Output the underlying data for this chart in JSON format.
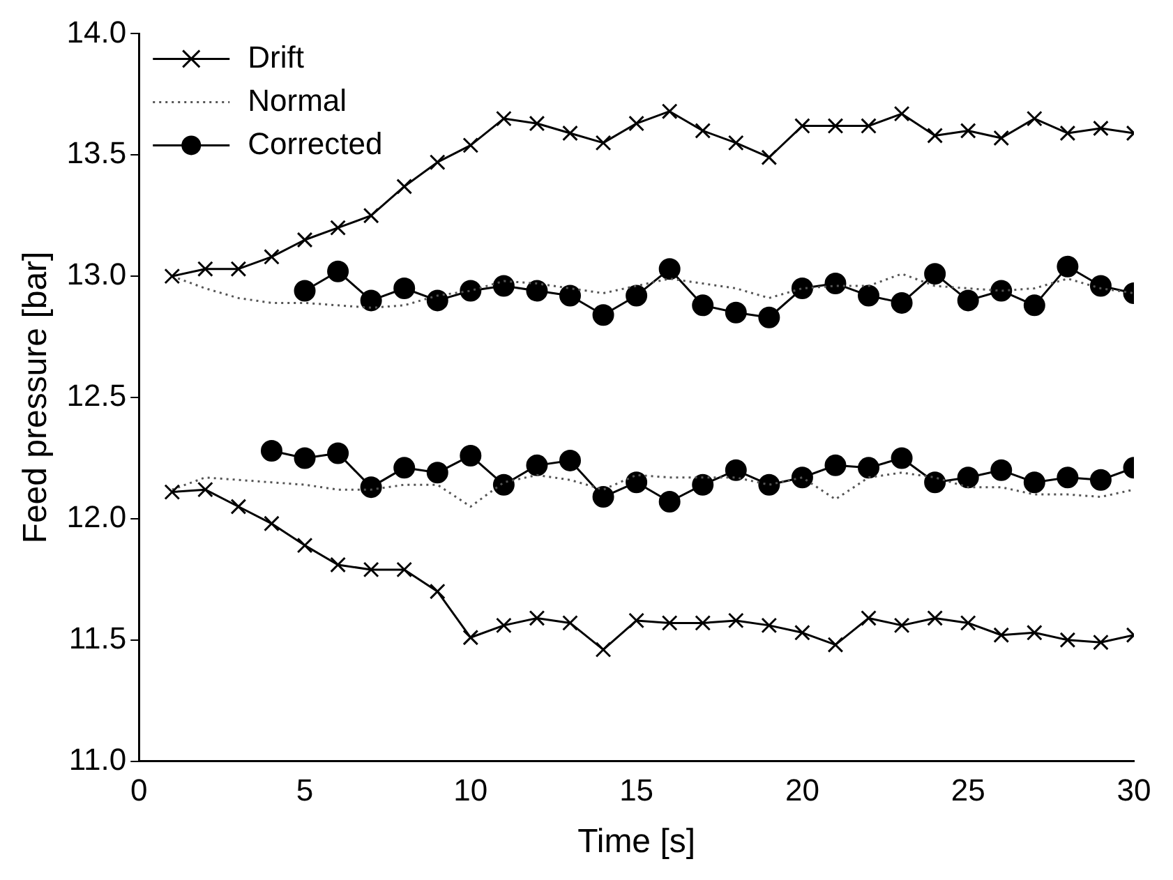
{
  "chart_data": {
    "type": "line",
    "xlabel": "Time [s]",
    "ylabel": "Feed pressure [bar]",
    "xlim": [
      0,
      30
    ],
    "xticks": [
      0,
      5,
      10,
      15,
      20,
      25,
      30
    ],
    "ylim": [
      11,
      14
    ],
    "yticks": [
      {
        "value": 11,
        "label": "11.0"
      },
      {
        "value": 11.5,
        "label": "11.5"
      },
      {
        "value": 12,
        "label": "12.0"
      },
      {
        "value": 12.5,
        "label": "12.5"
      },
      {
        "value": 13,
        "label": "13.0"
      },
      {
        "value": 13.5,
        "label": "13.5"
      },
      {
        "value": 14,
        "label": "14.0"
      }
    ],
    "grid": false,
    "legend": "top left",
    "x": [
      1,
      2,
      3,
      4,
      5,
      6,
      7,
      8,
      9,
      10,
      11,
      12,
      13,
      14,
      15,
      16,
      17,
      18,
      19,
      20,
      21,
      22,
      23,
      24,
      25,
      26,
      27,
      28,
      29,
      30
    ],
    "series": [
      {
        "name": "Drift",
        "color": "#000000",
        "marker": "cross",
        "line_style": "solid",
        "values": [
          13.0,
          13.03,
          13.03,
          13.08,
          13.15,
          13.2,
          13.25,
          13.37,
          13.47,
          13.54,
          13.65,
          13.63,
          13.59,
          13.55,
          13.63,
          13.68,
          13.6,
          13.55,
          13.49,
          13.62,
          13.62,
          13.62,
          13.67,
          13.58,
          13.6,
          13.57,
          13.65,
          13.59,
          13.61,
          13.59
        ]
      },
      {
        "name": "Normal",
        "color": "#555555",
        "marker": "none",
        "line_style": "dotted",
        "values": [
          13.0,
          12.95,
          12.91,
          12.89,
          12.89,
          12.88,
          12.87,
          12.88,
          12.92,
          12.94,
          12.98,
          12.97,
          12.95,
          12.93,
          12.96,
          12.99,
          12.97,
          12.95,
          12.91,
          12.95,
          12.96,
          12.96,
          13.01,
          12.96,
          12.95,
          12.94,
          12.95,
          12.99,
          12.95,
          12.93
        ]
      },
      {
        "name": "Corrected",
        "color": "#000000",
        "marker": "circle",
        "line_style": "solid",
        "values": [
          null,
          null,
          null,
          null,
          12.94,
          13.02,
          12.9,
          12.95,
          12.9,
          12.94,
          12.96,
          12.94,
          12.92,
          12.84,
          12.92,
          13.03,
          12.88,
          12.85,
          12.83,
          12.95,
          12.97,
          12.92,
          12.89,
          13.01,
          12.9,
          12.94,
          12.88,
          13.04,
          12.96,
          12.93
        ]
      },
      {
        "color": "#000000",
        "marker": "cross",
        "line_style": "solid",
        "values": [
          12.11,
          12.12,
          12.05,
          11.98,
          11.89,
          11.81,
          11.79,
          11.79,
          11.7,
          11.51,
          11.56,
          11.59,
          11.57,
          11.46,
          11.58,
          11.57,
          11.57,
          11.58,
          11.56,
          11.53,
          11.48,
          11.59,
          11.56,
          11.59,
          11.57,
          11.52,
          11.53,
          11.5,
          11.49,
          11.52
        ]
      },
      {
        "color": "#555555",
        "marker": "none",
        "line_style": "dotted",
        "values": [
          12.12,
          12.17,
          12.16,
          12.15,
          12.14,
          12.12,
          12.12,
          12.14,
          12.14,
          12.05,
          12.15,
          12.18,
          12.16,
          12.12,
          12.18,
          12.17,
          12.17,
          12.17,
          12.14,
          12.17,
          12.08,
          12.17,
          12.19,
          12.17,
          12.13,
          12.13,
          12.1,
          12.1,
          12.09,
          12.12
        ]
      },
      {
        "color": "#000000",
        "marker": "circle",
        "line_style": "solid",
        "values": [
          null,
          null,
          null,
          12.28,
          12.25,
          12.27,
          12.13,
          12.21,
          12.19,
          12.26,
          12.14,
          12.22,
          12.24,
          12.09,
          12.15,
          12.07,
          12.14,
          12.2,
          12.14,
          12.17,
          12.22,
          12.21,
          12.25,
          12.15,
          12.17,
          12.2,
          12.15,
          12.17,
          12.16,
          12.21
        ]
      }
    ]
  }
}
